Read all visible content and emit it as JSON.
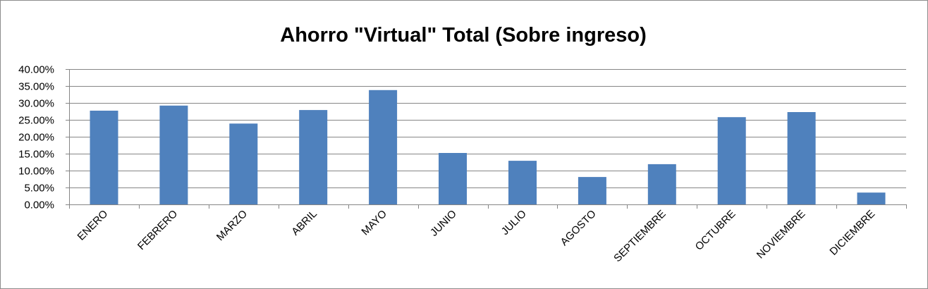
{
  "chart_data": {
    "type": "bar",
    "title": "Ahorro \"Virtual\" Total (Sobre ingreso)",
    "xlabel": "",
    "ylabel": "",
    "categories": [
      "ENERO",
      "FEBRERO",
      "MARZO",
      "ABRIL",
      "MAYO",
      "JUNIO",
      "JULIO",
      "AGOSTO",
      "SEPTIEMBRE",
      "OCTUBRE",
      "NOVIEMBRE",
      "DICIEMBRE"
    ],
    "values": [
      27.7,
      29.2,
      23.9,
      27.9,
      33.8,
      15.2,
      12.9,
      8.1,
      11.9,
      25.8,
      27.3,
      3.5
    ],
    "ylim": [
      0,
      40
    ],
    "yticks": [
      "0.00%",
      "5.00%",
      "10.00%",
      "15.00%",
      "20.00%",
      "25.00%",
      "30.00%",
      "35.00%",
      "40.00%"
    ],
    "grid": true,
    "legend": "none",
    "colors": {
      "bar": "#4f81bd",
      "grid": "#868686",
      "axis": "#868686"
    }
  }
}
